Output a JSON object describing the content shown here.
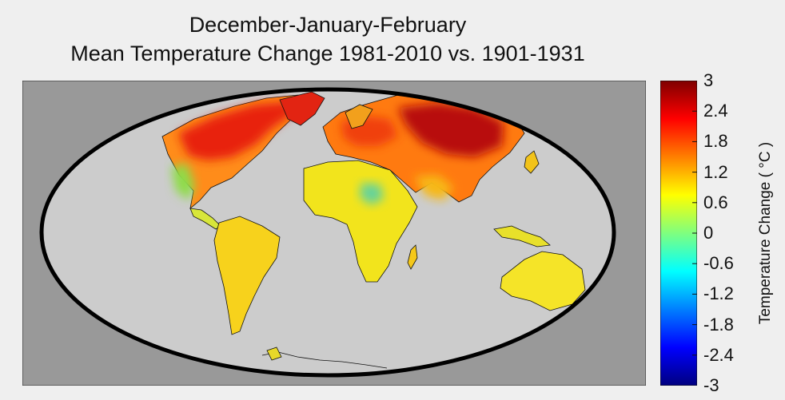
{
  "title": {
    "line1": "December-January-February",
    "line2": "Mean Temperature Change 1981-2010 vs. 1901-1931"
  },
  "colorbar": {
    "label": "Temperature Change ( °C )",
    "ticks": [
      "3",
      "2.4",
      "1.8",
      "1.2",
      "0.6",
      "0",
      "-0.6",
      "-1.2",
      "-1.8",
      "-2.4",
      "-3"
    ],
    "range": [
      -3,
      3
    ],
    "colors": [
      "#00007f",
      "#0000ff",
      "#007fff",
      "#00ffff",
      "#7fff7f",
      "#ffff00",
      "#ff7f00",
      "#ff0000",
      "#7f0000"
    ]
  },
  "map": {
    "projection": "Mollweide",
    "ocean_color": "#cccccc",
    "background_color": "#999999",
    "outline_color": "#000000"
  }
}
